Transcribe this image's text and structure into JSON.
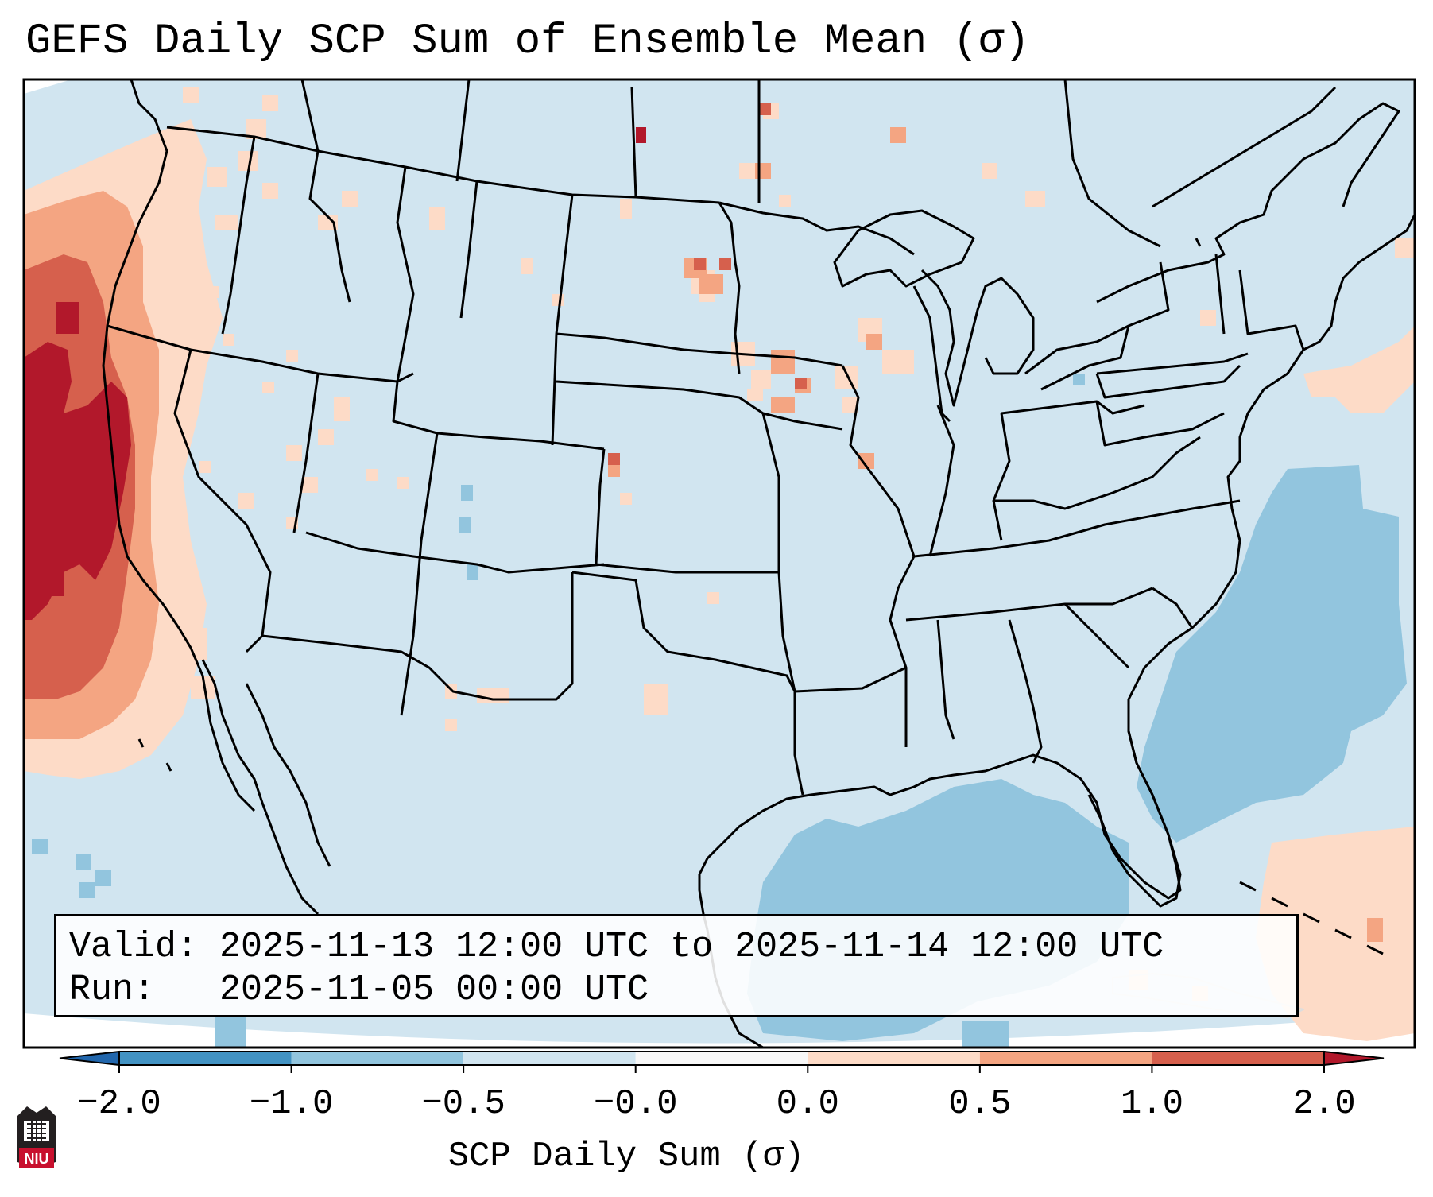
{
  "title": "GEFS Daily SCP Sum of Ensemble Mean (σ)",
  "info": {
    "valid_label": "Valid:",
    "valid_value": "2025-11-13 12:00 UTC to 2025-11-14 12:00 UTC",
    "run_label": "Run:",
    "run_value": "2025-11-05 00:00 UTC"
  },
  "colorbar": {
    "label": "SCP Daily Sum (σ)",
    "ticks": [
      "−2.0",
      "−1.0",
      "−0.5",
      "−0.0",
      "0.0",
      "0.5",
      "1.0",
      "2.0"
    ],
    "bins": [
      {
        "from": -2.0,
        "to": -1.0,
        "color": "#4393c3"
      },
      {
        "from": -1.0,
        "to": -0.5,
        "color": "#92c5de"
      },
      {
        "from": -0.5,
        "to": -0.0,
        "color": "#d1e5f0"
      },
      {
        "from": 0.0,
        "to": 0.0,
        "color": "#f7f7f7"
      },
      {
        "from": 0.0,
        "to": 0.5,
        "color": "#fddbc7"
      },
      {
        "from": 0.5,
        "to": 1.0,
        "color": "#f4a582"
      },
      {
        "from": 1.0,
        "to": 2.0,
        "color": "#d6604d"
      }
    ],
    "under_color": "#2166ac",
    "over_color": "#b2182b"
  },
  "regions": {
    "background_value_sigma": -0.3,
    "west_coast_max_sigma": "above 2.0",
    "atlantic_anomaly_sigma": "-1.0 to -0.5",
    "gulf_anomaly_sigma": "-1.0 to -0.5",
    "caribbean_anomaly_sigma": "0.0 to 0.5"
  },
  "logo": {
    "text": "NIU"
  }
}
